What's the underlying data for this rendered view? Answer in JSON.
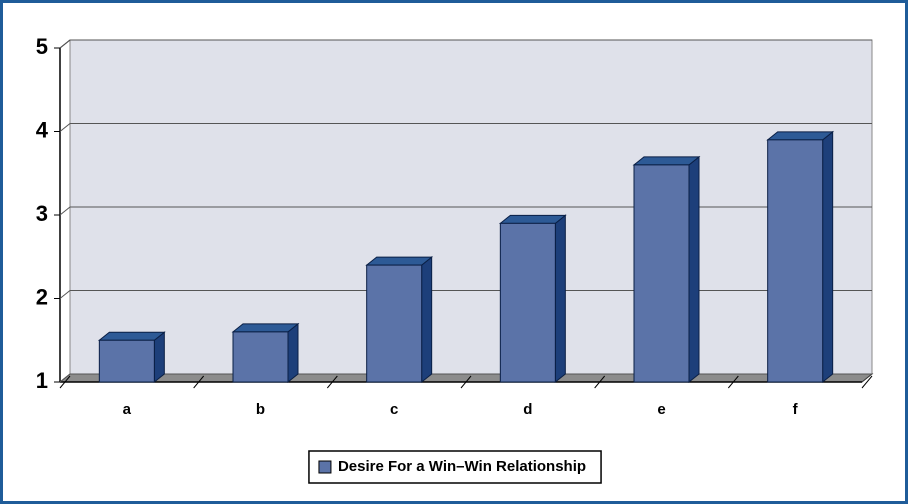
{
  "chart_data": {
    "type": "bar",
    "categories": [
      "a",
      "b",
      "c",
      "d",
      "e",
      "f"
    ],
    "series": [
      {
        "name": "Desire For a Win–Win Relationship",
        "color": "#5b73a8",
        "values": [
          1.5,
          1.6,
          2.4,
          2.9,
          3.6,
          3.9
        ]
      }
    ],
    "ylim": [
      1,
      5
    ],
    "yticks": [
      1,
      2,
      3,
      4,
      5
    ],
    "grid": true,
    "legend": "bottom"
  }
}
